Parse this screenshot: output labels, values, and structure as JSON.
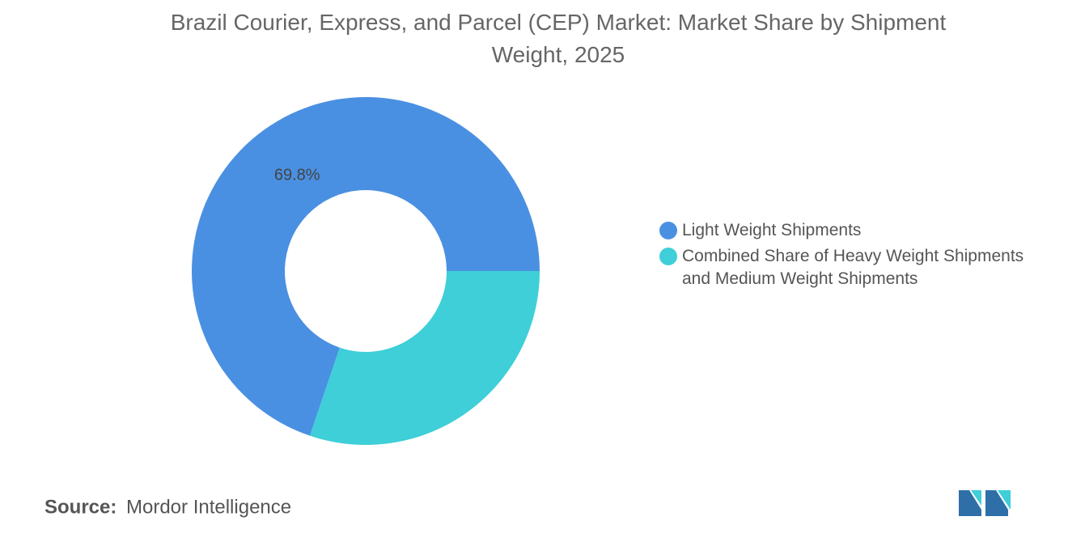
{
  "chart_data": {
    "type": "donut",
    "title": "Brazil Courier, Express, and Parcel (CEP) Market: Market Share by Shipment Weight, 2025",
    "categories": [
      "Light Weight Shipments",
      "Combined Share of Heavy Weight Shipments and Medium Weight Shipments"
    ],
    "values": [
      69.8,
      30.2
    ],
    "value_labels": [
      "69.8%",
      null
    ],
    "colors": [
      "#4a90e2",
      "#3ecfd8"
    ],
    "legend": "right",
    "source_label": "Source:",
    "source": "Mordor Intelligence"
  }
}
